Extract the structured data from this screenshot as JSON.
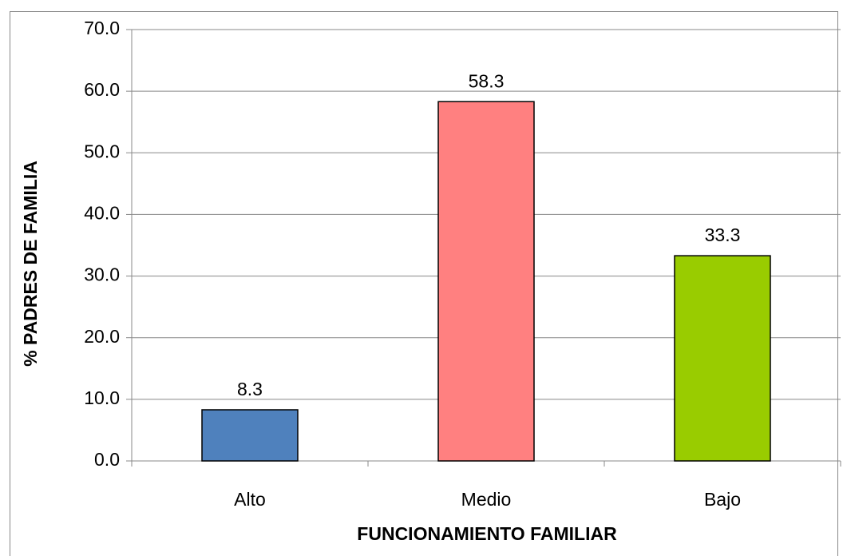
{
  "chart_data": {
    "type": "bar",
    "x_label": "FUNCIONAMIENTO FAMILIAR",
    "y_label": "% PADRES DE FAMILIA",
    "categories": [
      "Alto",
      "Medio",
      "Bajo"
    ],
    "values": [
      8.3,
      58.3,
      33.3
    ],
    "colors": [
      "#4f81bd",
      "#ff8080",
      "#99cc00"
    ],
    "ylim": [
      0,
      70
    ],
    "yticks": [
      {
        "value": 0,
        "label": "0.0"
      },
      {
        "value": 10,
        "label": "10.0"
      },
      {
        "value": 20,
        "label": "20.0"
      },
      {
        "value": 30,
        "label": "30.0"
      },
      {
        "value": 40,
        "label": "40.0"
      },
      {
        "value": 50,
        "label": "50.0"
      },
      {
        "value": 60,
        "label": "60.0"
      },
      {
        "value": 70,
        "label": "70.0"
      }
    ],
    "grid": true
  }
}
